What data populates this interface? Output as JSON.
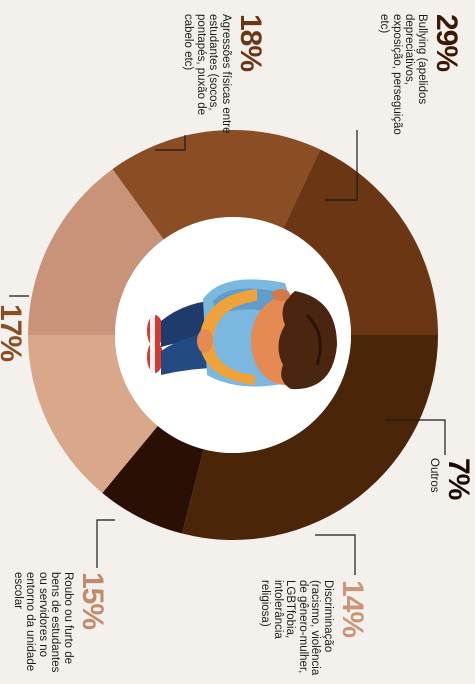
{
  "chart_data": {
    "type": "pie",
    "title": "",
    "categories": [
      "Bullying (apelidos depreciativos, exposição, perseguição etc)",
      "Outros",
      "Discriminação (racismo, violência de gênero-mulher, LGBTfobia, intolerância religiosa)",
      "Roubo ou furto de bens de estudantes ou servidores no entorno da unidade escolar",
      "17%",
      "Agressões físicas entre estudantes (socos, pontapés, puxão de cabelo etc)"
    ],
    "values": [
      29,
      7,
      14,
      15,
      17,
      18
    ],
    "colors": [
      "#4a2508",
      "#2a0f04",
      "#d9a78a",
      "#c89378",
      "#8a4d24",
      "#6b3613"
    ]
  },
  "callouts": [
    {
      "pct": "29%",
      "text": "Bullying (apelidos depreciativos, exposição, perseguição etc)",
      "pct_color": "#3a1a06"
    },
    {
      "pct": "18%",
      "text": "Agressões físicas entre estudantes (socos, pontapés, puxão de cabelo etc)",
      "pct_color": "#6b3613"
    },
    {
      "pct": "7%",
      "text": "Outros",
      "pct_color": "#1b0a02"
    },
    {
      "pct": "14%",
      "text": "Discriminação (racismo, violência de gênero-mulher, LGBTfobia, intolerância religiosa)",
      "pct_color": "#c9967a"
    },
    {
      "pct": "15%",
      "text": "Roubo ou furto de bens de estudantes ou servidores no entorno da unidade escolar",
      "pct_color": "#c08a6c"
    },
    {
      "pct": "17%",
      "text": "",
      "pct_color": "#8a4d24"
    }
  ],
  "illustration": {
    "name": "curled-up-child-illustration"
  }
}
